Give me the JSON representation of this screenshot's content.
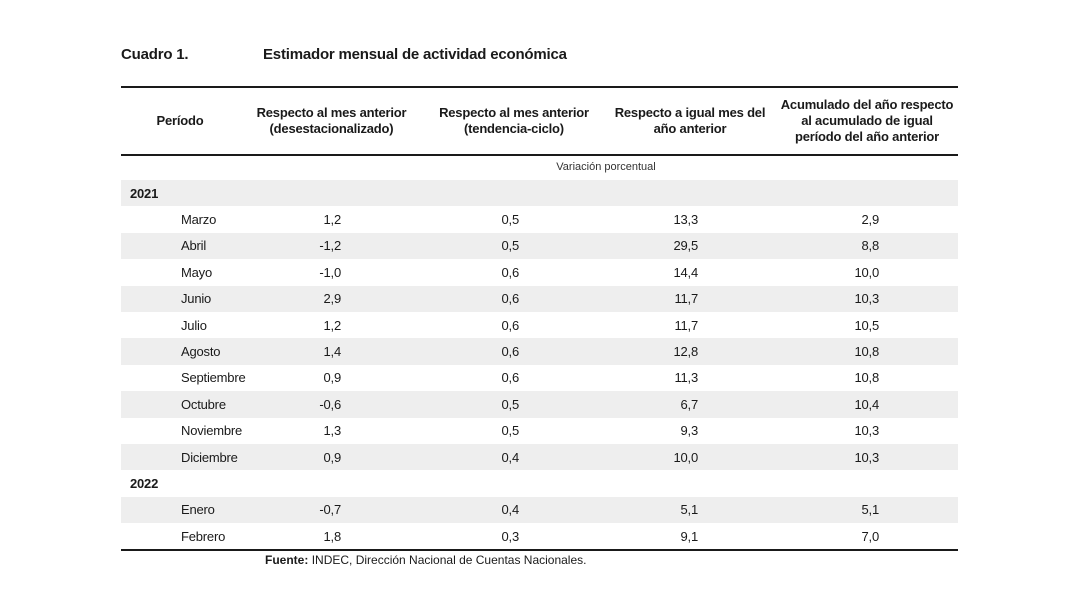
{
  "title": {
    "label": "Cuadro 1.",
    "text": "Estimador mensual de actividad económica"
  },
  "header": {
    "periodo": "Período",
    "col1": "Respecto al mes anterior\n(desestacionalizado)",
    "col2": "Respecto al mes anterior\n(tendencia-ciclo)",
    "col3": "Respecto a igual mes del\naño anterior",
    "col4": "Acumulado del año respecto\nal acumulado de igual\nperíodo del año anterior"
  },
  "unit": "Variación porcentual",
  "rows": [
    {
      "type": "year",
      "label": "2021"
    },
    {
      "type": "month",
      "label": "Marzo",
      "v1": "1,2",
      "v2": "0,5",
      "v3": "13,3",
      "v4": "2,9"
    },
    {
      "type": "month",
      "label": "Abril",
      "v1": "-1,2",
      "v2": "0,5",
      "v3": "29,5",
      "v4": "8,8"
    },
    {
      "type": "month",
      "label": "Mayo",
      "v1": "-1,0",
      "v2": "0,6",
      "v3": "14,4",
      "v4": "10,0"
    },
    {
      "type": "month",
      "label": "Junio",
      "v1": "2,9",
      "v2": "0,6",
      "v3": "11,7",
      "v4": "10,3"
    },
    {
      "type": "month",
      "label": "Julio",
      "v1": "1,2",
      "v2": "0,6",
      "v3": "11,7",
      "v4": "10,5"
    },
    {
      "type": "month",
      "label": "Agosto",
      "v1": "1,4",
      "v2": "0,6",
      "v3": "12,8",
      "v4": "10,8"
    },
    {
      "type": "month",
      "label": "Septiembre",
      "v1": "0,9",
      "v2": "0,6",
      "v3": "11,3",
      "v4": "10,8"
    },
    {
      "type": "month",
      "label": "Octubre",
      "v1": "-0,6",
      "v2": "0,5",
      "v3": "6,7",
      "v4": "10,4"
    },
    {
      "type": "month",
      "label": "Noviembre",
      "v1": "1,3",
      "v2": "0,5",
      "v3": "9,3",
      "v4": "10,3"
    },
    {
      "type": "month",
      "label": "Diciembre",
      "v1": "0,9",
      "v2": "0,4",
      "v3": "10,0",
      "v4": "10,3"
    },
    {
      "type": "year",
      "label": "2022"
    },
    {
      "type": "month",
      "label": "Enero",
      "v1": "-0,7",
      "v2": "0,4",
      "v3": "5,1",
      "v4": "5,1"
    },
    {
      "type": "month",
      "label": "Febrero",
      "v1": "1,8",
      "v2": "0,3",
      "v3": "9,1",
      "v4": "7,0"
    }
  ],
  "source": {
    "label": "Fuente:",
    "text": "INDEC, Dirección Nacional de Cuentas Nacionales."
  }
}
